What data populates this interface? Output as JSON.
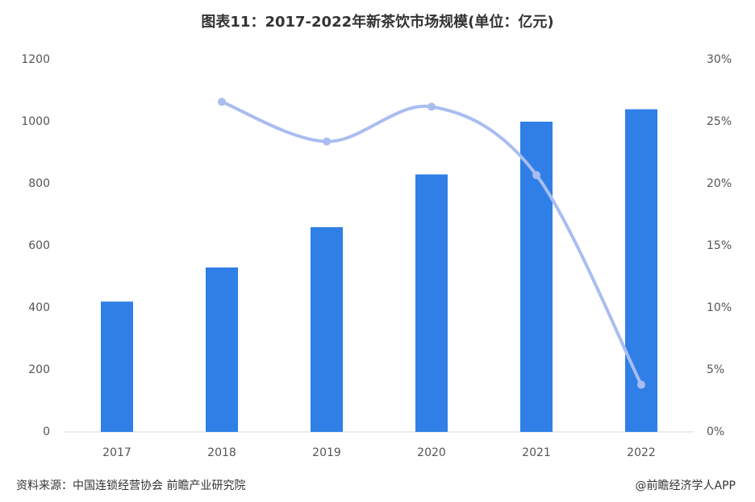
{
  "chart_data": {
    "type": "bar-line",
    "title": "图表11：2017-2022年新茶饮市场规模(单位：亿元)",
    "categories": [
      "2017",
      "2018",
      "2019",
      "2020",
      "2021",
      "2022"
    ],
    "series": [
      {
        "type": "bar",
        "color": "#2f7fe6",
        "values": [
          420,
          530,
          660,
          830,
          1000,
          1040
        ]
      },
      {
        "type": "line",
        "axis": "y2",
        "color": "#a9bdf0",
        "values": [
          null,
          26.6,
          23.4,
          26.2,
          20.7,
          3.8
        ]
      }
    ],
    "ylim": [
      0,
      1200
    ],
    "yticks": [
      0,
      200,
      400,
      600,
      800,
      1000,
      1200
    ],
    "y2lim": [
      0,
      30
    ],
    "y2ticks": [
      {
        "value": 0,
        "label": "0%"
      },
      {
        "value": 5,
        "label": "5%"
      },
      {
        "value": 10,
        "label": "10%"
      },
      {
        "value": 15,
        "label": "15%"
      },
      {
        "value": 20,
        "label": "20%"
      },
      {
        "value": 25,
        "label": "25%"
      },
      {
        "value": 30,
        "label": "30%"
      }
    ],
    "grid": false,
    "source": "资料来源：中国连锁经营协会 前瞻产业研究院",
    "credit": "@前瞻经济学人APP"
  }
}
